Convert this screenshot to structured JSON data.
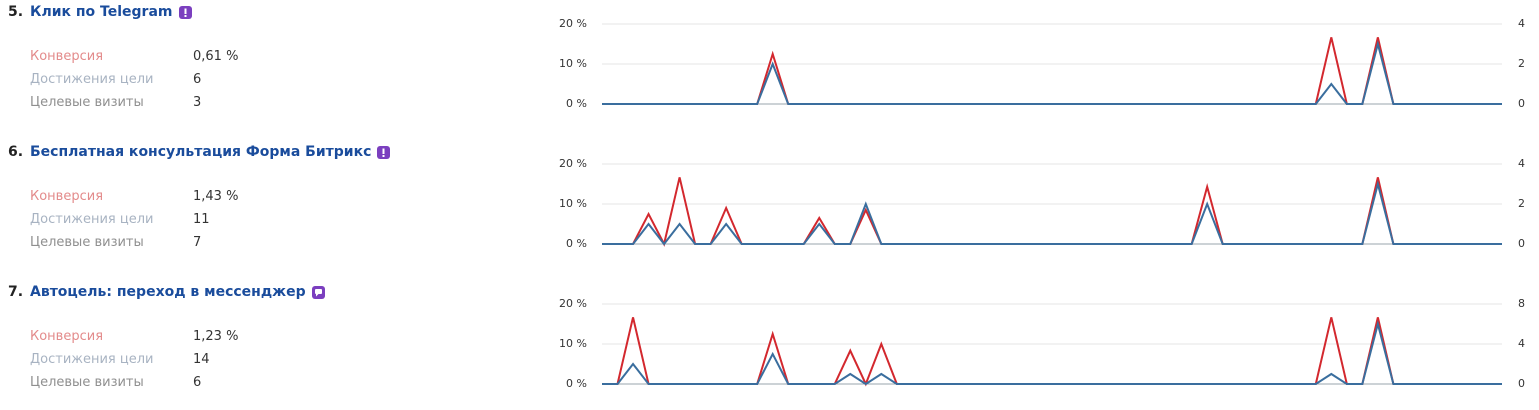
{
  "goals": [
    {
      "number": "5.",
      "title": "Клик по Telegram",
      "metrics": [
        {
          "label": "Конверсия",
          "value": "0,61 %"
        },
        {
          "label": "Достижения цели",
          "value": "6"
        },
        {
          "label": "Целевые визиты",
          "value": "3"
        }
      ],
      "chart": {
        "type": "line",
        "ylim": [
          0,
          20
        ],
        "yticks": [
          {
            "value": 0,
            "label": "0 %"
          },
          {
            "value": 10,
            "label": "10 %"
          },
          {
            "value": 20,
            "label": "20 %"
          }
        ],
        "y2lim": [
          0,
          4
        ],
        "y2ticks": [
          0,
          2,
          4
        ],
        "grid": true,
        "series": [
          {
            "color": "#d3282e",
            "values": [
              0,
              0,
              0,
              0,
              0,
              0,
              0,
              0,
              0,
              0,
              0,
              12.5,
              0,
              0,
              0,
              0,
              0,
              0,
              0,
              0,
              0,
              0,
              0,
              0,
              0,
              0,
              0,
              0,
              0,
              0,
              0,
              0,
              0,
              0,
              0,
              0,
              0,
              0,
              0,
              0,
              0,
              0,
              0,
              0,
              0,
              0,
              0,
              16.67,
              0,
              0,
              16.67,
              0,
              0,
              0,
              0,
              0,
              0,
              0,
              0
            ]
          },
          {
            "color": "#3a6e9e",
            "axis": "y2",
            "values": [
              0,
              0,
              0,
              0,
              0,
              0,
              0,
              0,
              0,
              0,
              0,
              2,
              0,
              0,
              0,
              0,
              0,
              0,
              0,
              0,
              0,
              0,
              0,
              0,
              0,
              0,
              0,
              0,
              0,
              0,
              0,
              0,
              0,
              0,
              0,
              0,
              0,
              0,
              0,
              0,
              0,
              0,
              0,
              0,
              0,
              0,
              0,
              1,
              0,
              0,
              3,
              0,
              0,
              0,
              0,
              0,
              0,
              0,
              0
            ]
          }
        ]
      }
    },
    {
      "number": "6.",
      "title": "Бесплатная консультация Форма Битрикс",
      "metrics": [
        {
          "label": "Конверсия",
          "value": "1,43 %"
        },
        {
          "label": "Достижения цели",
          "value": "11"
        },
        {
          "label": "Целевые визиты",
          "value": "7"
        }
      ],
      "chart": {
        "type": "line",
        "ylim": [
          0,
          20
        ],
        "yticks": [
          {
            "value": 0,
            "label": "0 %"
          },
          {
            "value": 10,
            "label": "10 %"
          },
          {
            "value": 20,
            "label": "20 %"
          }
        ],
        "y2lim": [
          0,
          4
        ],
        "y2ticks": [
          0,
          2,
          4
        ],
        "grid": true,
        "series": [
          {
            "color": "#d3282e",
            "values": [
              0,
              0,
              0,
              7.5,
              0,
              16.67,
              0,
              0,
              9,
              0,
              0,
              0,
              0,
              0,
              6.5,
              0,
              0,
              8.5,
              0,
              0,
              0,
              0,
              0,
              0,
              0,
              0,
              0,
              0,
              0,
              0,
              0,
              0,
              0,
              0,
              0,
              0,
              0,
              0,
              0,
              14.3,
              0,
              0,
              0,
              0,
              0,
              0,
              0,
              0,
              0,
              0,
              16.67,
              0,
              0,
              0,
              0,
              0,
              0,
              0,
              0
            ]
          },
          {
            "color": "#3a6e9e",
            "axis": "y2",
            "values": [
              0,
              0,
              0,
              1,
              0,
              1,
              0,
              0,
              1,
              0,
              0,
              0,
              0,
              0,
              1,
              0,
              0,
              2,
              0,
              0,
              0,
              0,
              0,
              0,
              0,
              0,
              0,
              0,
              0,
              0,
              0,
              0,
              0,
              0,
              0,
              0,
              0,
              0,
              0,
              2,
              0,
              0,
              0,
              0,
              0,
              0,
              0,
              0,
              0,
              0,
              3,
              0,
              0,
              0,
              0,
              0,
              0,
              0,
              0
            ]
          }
        ]
      }
    },
    {
      "number": "7.",
      "title": "Автоцель: переход в мессенджер",
      "metrics": [
        {
          "label": "Конверсия",
          "value": "1,23 %"
        },
        {
          "label": "Достижения цели",
          "value": "14"
        },
        {
          "label": "Целевые визиты",
          "value": "6"
        }
      ],
      "chart": {
        "type": "line",
        "ylim": [
          0,
          20
        ],
        "yticks": [
          {
            "value": 0,
            "label": "0 %"
          },
          {
            "value": 10,
            "label": "10 %"
          },
          {
            "value": 20,
            "label": "20 %"
          }
        ],
        "y2lim": [
          0,
          8
        ],
        "y2ticks": [
          0,
          4,
          8
        ],
        "grid": true,
        "series": [
          {
            "color": "#d3282e",
            "values": [
              0,
              0,
              16.67,
              0,
              0,
              0,
              0,
              0,
              0,
              0,
              0,
              12.5,
              0,
              0,
              0,
              0,
              8.33,
              0,
              10,
              0,
              0,
              0,
              0,
              0,
              0,
              0,
              0,
              0,
              0,
              0,
              0,
              0,
              0,
              0,
              0,
              0,
              0,
              0,
              0,
              0,
              0,
              0,
              0,
              0,
              0,
              0,
              0,
              16.67,
              0,
              0,
              16.67,
              0,
              0,
              0,
              0,
              0,
              0,
              0,
              0
            ]
          },
          {
            "color": "#3a6e9e",
            "axis": "y2",
            "values": [
              0,
              0,
              2,
              0,
              0,
              0,
              0,
              0,
              0,
              0,
              0,
              3,
              0,
              0,
              0,
              0,
              1,
              0,
              1,
              0,
              0,
              0,
              0,
              0,
              0,
              0,
              0,
              0,
              0,
              0,
              0,
              0,
              0,
              0,
              0,
              0,
              0,
              0,
              0,
              0,
              0,
              0,
              0,
              0,
              0,
              0,
              0,
              1,
              0,
              0,
              6,
              0,
              0,
              0,
              0,
              0,
              0,
              0,
              0
            ]
          }
        ]
      }
    }
  ]
}
